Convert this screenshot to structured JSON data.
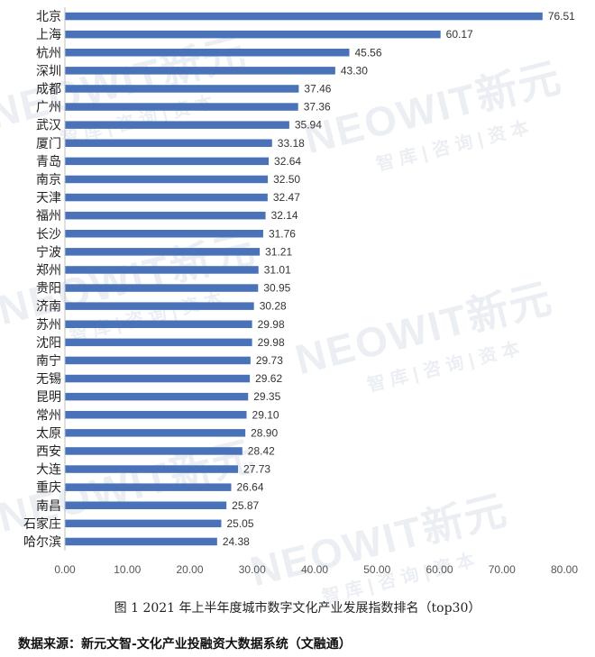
{
  "chart_data": {
    "type": "bar",
    "orientation": "horizontal",
    "categories": [
      "北京",
      "上海",
      "杭州",
      "深圳",
      "成都",
      "广州",
      "武汉",
      "厦门",
      "青岛",
      "南京",
      "天津",
      "福州",
      "长沙",
      "宁波",
      "郑州",
      "贵阳",
      "济南",
      "苏州",
      "沈阳",
      "南宁",
      "无锡",
      "昆明",
      "常州",
      "太原",
      "西安",
      "大连",
      "重庆",
      "南昌",
      "石家庄",
      "哈尔滨"
    ],
    "values": [
      76.51,
      60.17,
      45.56,
      43.3,
      37.46,
      37.36,
      35.94,
      33.18,
      32.64,
      32.5,
      32.47,
      32.14,
      31.76,
      31.21,
      31.01,
      30.95,
      30.28,
      29.98,
      29.98,
      29.73,
      29.62,
      29.35,
      29.1,
      28.9,
      28.42,
      27.73,
      26.64,
      25.87,
      25.05,
      24.38
    ],
    "value_labels": [
      "76.51",
      "60.17",
      "45.56",
      "43.30",
      "37.46",
      "37.36",
      "35.94",
      "33.18",
      "32.64",
      "32.50",
      "32.47",
      "32.14",
      "31.76",
      "31.21",
      "31.01",
      "30.95",
      "30.28",
      "29.98",
      "29.98",
      "29.73",
      "29.62",
      "29.35",
      "29.10",
      "28.90",
      "28.42",
      "27.73",
      "26.64",
      "25.87",
      "25.05",
      "24.38"
    ],
    "xlim": [
      0,
      80
    ],
    "xticks": [
      "0.00",
      "10.00",
      "20.00",
      "30.00",
      "40.00",
      "50.00",
      "60.00",
      "70.00",
      "80.00"
    ],
    "grid": false,
    "bar_color": "#4a72b8"
  },
  "caption": "图 1   2021 年上半年度城市数字文化产业发展指数排名（top30）",
  "source": "数据来源：新元文智-文化产业投融资大数据系统（文融通）",
  "watermark": {
    "brand": "NEOWIT新元",
    "tagline": "智库|咨询|资本"
  }
}
